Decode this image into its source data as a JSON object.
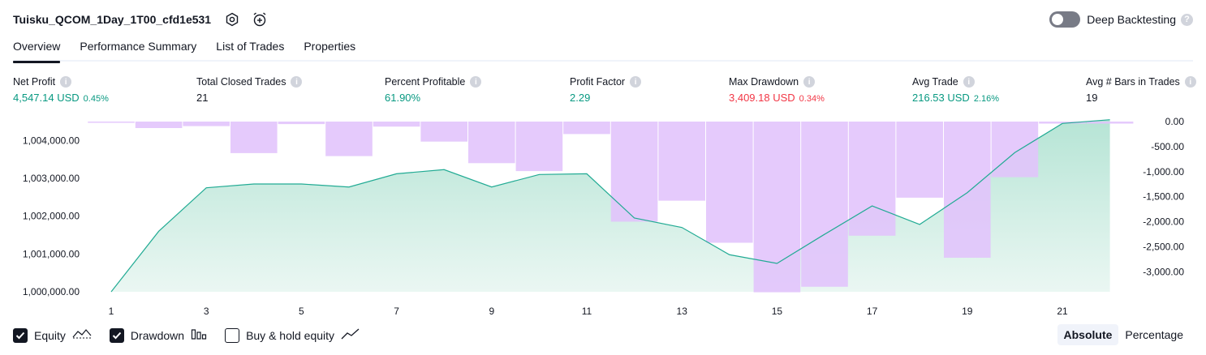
{
  "header": {
    "title": "Tuisku_QCOM_1Day_1T00_cfd1e531",
    "settings_icon": "gear-icon",
    "alert_icon": "alarm-clock-plus-icon",
    "deep_backtesting_label": "Deep Backtesting",
    "deep_backtesting_enabled": false
  },
  "tabs": [
    {
      "label": "Overview",
      "active": true
    },
    {
      "label": "Performance Summary",
      "active": false
    },
    {
      "label": "List of Trades",
      "active": false
    },
    {
      "label": "Properties",
      "active": false
    }
  ],
  "metrics": [
    {
      "label": "Net Profit",
      "value": "4,547.14 USD",
      "pct": "0.45%",
      "color": "#089981"
    },
    {
      "label": "Total Closed Trades",
      "value": "21",
      "pct": "",
      "color": "#131722"
    },
    {
      "label": "Percent Profitable",
      "value": "61.90%",
      "pct": "",
      "color": "#089981"
    },
    {
      "label": "Profit Factor",
      "value": "2.29",
      "pct": "",
      "color": "#089981"
    },
    {
      "label": "Max Drawdown",
      "value": "3,409.18 USD",
      "pct": "0.34%",
      "color": "#f23645"
    },
    {
      "label": "Avg Trade",
      "value": "216.53 USD",
      "pct": "2.16%",
      "color": "#089981"
    },
    {
      "label": "Avg # Bars in Trades",
      "value": "19",
      "pct": "",
      "color": "#131722"
    }
  ],
  "chart_data": {
    "type": "area",
    "x_ticks": [
      "1",
      "3",
      "5",
      "7",
      "9",
      "11",
      "13",
      "15",
      "17",
      "19",
      "21"
    ],
    "left_axis": {
      "tick_labels": [
        "1,004,000.00",
        "1,003,000.00",
        "1,002,000.00",
        "1,001,000.00",
        "1,000,000.00"
      ],
      "ylim": [
        1000000,
        1004500
      ]
    },
    "right_axis": {
      "tick_labels": [
        "0.00",
        "-500.00",
        "-1,000.00",
        "-1,500.00",
        "-2,000.00",
        "-2,500.00",
        "-3,000.00"
      ],
      "ylim": [
        -3400,
        0
      ]
    },
    "series": [
      {
        "name": "Equity",
        "kind": "area",
        "x": [
          1,
          2,
          3,
          4,
          5,
          6,
          7,
          8,
          9,
          10,
          11,
          12,
          13,
          14,
          15,
          16,
          17,
          18,
          19,
          20,
          21,
          22
        ],
        "values": [
          1000000,
          1001600,
          1002750,
          1002850,
          1002850,
          1002770,
          1003120,
          1003230,
          1002770,
          1003100,
          1003120,
          1001950,
          1001700,
          1000980,
          1000750,
          1001520,
          1002270,
          1001780,
          1002620,
          1003680,
          1004450,
          1004550
        ]
      },
      {
        "name": "Drawdown",
        "kind": "bar",
        "x": [
          1,
          2,
          3,
          4,
          5,
          6,
          7,
          8,
          9,
          10,
          11,
          12,
          13,
          14,
          15,
          16,
          17,
          18,
          19,
          20,
          21,
          22
        ],
        "values": [
          0,
          -130,
          -90,
          -630,
          -50,
          -690,
          -100,
          -400,
          -830,
          -990,
          -250,
          -2000,
          -1580,
          -2420,
          -3409,
          -3300,
          -2280,
          -1520,
          -2720,
          -1110,
          -40,
          -40
        ]
      }
    ],
    "colors": {
      "equity_line": "#22ab94",
      "equity_fill": "#c8ebe1",
      "drawdown_fill": "#e1c3fc"
    }
  },
  "legend": {
    "equity_label": "Equity",
    "equity_checked": true,
    "equity_icon": "equity-line-icon",
    "drawdown_label": "Drawdown",
    "drawdown_checked": true,
    "drawdown_icon": "bar-chart-icon",
    "buyhold_label": "Buy & hold equity",
    "buyhold_checked": false,
    "buyhold_icon": "trend-line-icon"
  },
  "mode": {
    "absolute_label": "Absolute",
    "percentage_label": "Percentage",
    "active": "Absolute"
  }
}
